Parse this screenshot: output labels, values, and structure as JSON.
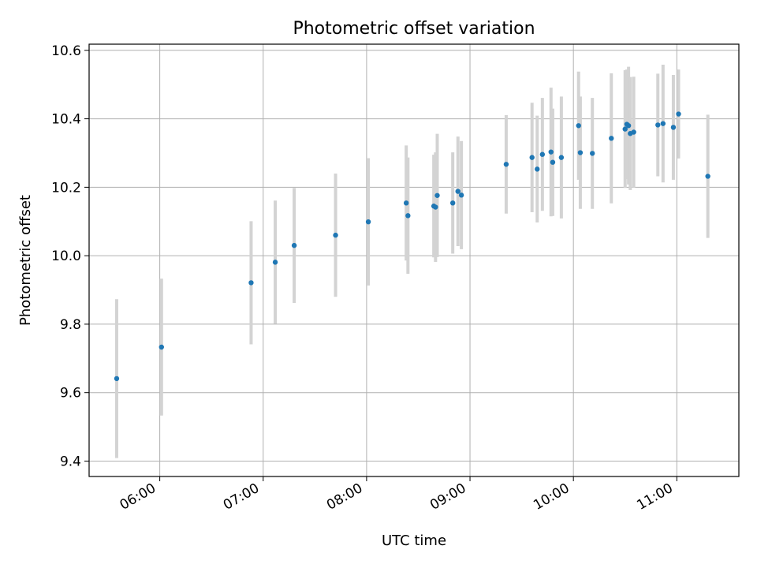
{
  "chart_data": {
    "type": "scatter",
    "title": "Photometric offset variation",
    "xlabel": "UTC time",
    "ylabel": "Photometric offset",
    "x_unit": "UTC time (HH:MM)",
    "xlim": [
      "05:19",
      "11:36"
    ],
    "ylim": [
      9.355,
      10.618
    ],
    "x_ticks": [
      "06:00",
      "07:00",
      "08:00",
      "09:00",
      "10:00",
      "11:00"
    ],
    "y_ticks": [
      "9.4",
      "9.6",
      "9.8",
      "10.0",
      "10.2",
      "10.4",
      "10.6"
    ],
    "y_tick_values": [
      9.4,
      9.6,
      9.8,
      10.0,
      10.2,
      10.4,
      10.6
    ],
    "grid": true,
    "colors": {
      "points": "#1f77b4",
      "errorbars": "#d3d3d3",
      "grid": "#b0b0b0"
    },
    "series": [
      {
        "points": [
          {
            "t": "05:35",
            "y": 9.641,
            "err": 0.232
          },
          {
            "t": "06:01",
            "y": 9.733,
            "err": 0.2
          },
          {
            "t": "06:53",
            "y": 9.921,
            "err": 0.18
          },
          {
            "t": "07:07",
            "y": 9.981,
            "err": 0.18
          },
          {
            "t": "07:18",
            "y": 10.03,
            "err": 0.168
          },
          {
            "t": "07:42",
            "y": 10.06,
            "err": 0.18
          },
          {
            "t": "08:01",
            "y": 10.099,
            "err": 0.186
          },
          {
            "t": "08:23",
            "y": 10.154,
            "err": 0.168
          },
          {
            "t": "08:24",
            "y": 10.117,
            "err": 0.17
          },
          {
            "t": "08:39",
            "y": 10.145,
            "err": 0.15
          },
          {
            "t": "08:40",
            "y": 10.142,
            "err": 0.16
          },
          {
            "t": "08:41",
            "y": 10.176,
            "err": 0.18
          },
          {
            "t": "08:50",
            "y": 10.154,
            "err": 0.148
          },
          {
            "t": "08:53",
            "y": 10.188,
            "err": 0.16
          },
          {
            "t": "08:55",
            "y": 10.177,
            "err": 0.158
          },
          {
            "t": "09:21",
            "y": 10.267,
            "err": 0.144
          },
          {
            "t": "09:36",
            "y": 10.287,
            "err": 0.16
          },
          {
            "t": "09:39",
            "y": 10.253,
            "err": 0.156
          },
          {
            "t": "09:42",
            "y": 10.296,
            "err": 0.165
          },
          {
            "t": "09:47",
            "y": 10.303,
            "err": 0.188
          },
          {
            "t": "09:48",
            "y": 10.273,
            "err": 0.157
          },
          {
            "t": "09:53",
            "y": 10.287,
            "err": 0.178
          },
          {
            "t": "10:03",
            "y": 10.38,
            "err": 0.158
          },
          {
            "t": "10:04",
            "y": 10.301,
            "err": 0.164
          },
          {
            "t": "10:11",
            "y": 10.299,
            "err": 0.162
          },
          {
            "t": "10:22",
            "y": 10.343,
            "err": 0.19
          },
          {
            "t": "10:30",
            "y": 10.37,
            "err": 0.172
          },
          {
            "t": "10:31",
            "y": 10.384,
            "err": 0.16
          },
          {
            "t": "10:32",
            "y": 10.38,
            "err": 0.172
          },
          {
            "t": "10:33",
            "y": 10.357,
            "err": 0.165
          },
          {
            "t": "10:35",
            "y": 10.361,
            "err": 0.162
          },
          {
            "t": "10:49",
            "y": 10.382,
            "err": 0.15
          },
          {
            "t": "10:52",
            "y": 10.386,
            "err": 0.172
          },
          {
            "t": "10:58",
            "y": 10.375,
            "err": 0.153
          },
          {
            "t": "11:01",
            "y": 10.414,
            "err": 0.13
          },
          {
            "t": "11:18",
            "y": 10.232,
            "err": 0.18
          }
        ]
      }
    ]
  }
}
